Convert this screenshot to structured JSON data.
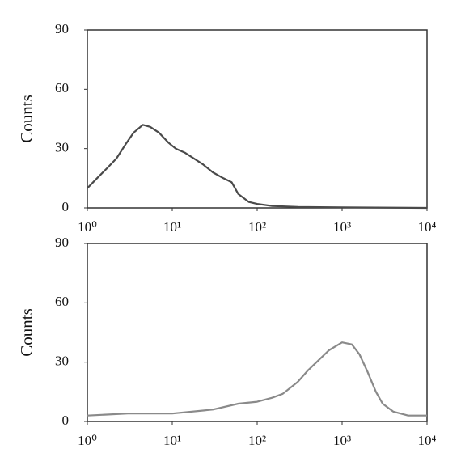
{
  "chart_data": [
    {
      "type": "line",
      "y_label": "Counts",
      "xscale": "log",
      "color": "#4a4a4a",
      "x": [
        1,
        1.3,
        1.7,
        2.2,
        2.8,
        3.5,
        4.5,
        5.5,
        7,
        9,
        11,
        14,
        18,
        23,
        30,
        40,
        50,
        60,
        80,
        100,
        150,
        300,
        1000,
        10000
      ],
      "values": [
        10,
        15,
        20,
        25,
        32,
        38,
        42,
        41,
        38,
        33,
        30,
        28,
        25,
        22,
        18,
        15,
        13,
        7,
        3,
        2,
        1,
        0.5,
        0.3,
        0
      ],
      "xlim": [
        1,
        10000
      ],
      "ylim": [
        0,
        90
      ],
      "xticks": [
        {
          "value": 1,
          "label": "10⁰"
        },
        {
          "value": 10,
          "label": "10¹"
        },
        {
          "value": 100,
          "label": "10²"
        },
        {
          "value": 1000,
          "label": "10³"
        },
        {
          "value": 10000,
          "label": "10⁴"
        }
      ],
      "yticks": [
        0,
        30,
        60,
        90
      ]
    },
    {
      "type": "line",
      "y_label": "Counts",
      "xscale": "log",
      "color": "#8a8a8a",
      "x": [
        1,
        3,
        10,
        30,
        60,
        100,
        150,
        200,
        300,
        400,
        500,
        700,
        1000,
        1300,
        1600,
        2000,
        2500,
        3000,
        4000,
        6000,
        10000
      ],
      "values": [
        3,
        4,
        4,
        6,
        9,
        10,
        12,
        14,
        20,
        26,
        30,
        36,
        40,
        39,
        34,
        25,
        15,
        9,
        5,
        3,
        3
      ],
      "xlim": [
        1,
        10000
      ],
      "ylim": [
        0,
        90
      ],
      "xticks": [
        {
          "value": 1,
          "label": "10⁰"
        },
        {
          "value": 10,
          "label": "10¹"
        },
        {
          "value": 100,
          "label": "10²"
        },
        {
          "value": 1000,
          "label": "10³"
        },
        {
          "value": 10000,
          "label": "10⁴"
        }
      ],
      "yticks": [
        0,
        30,
        60,
        90
      ]
    }
  ]
}
